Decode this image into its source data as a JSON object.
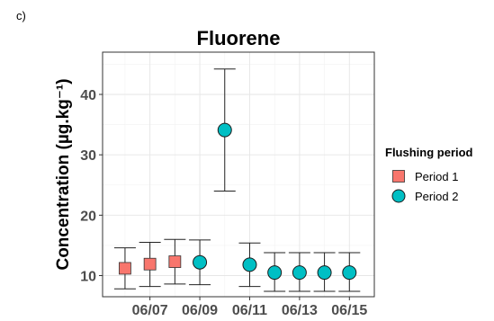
{
  "panel_label": "c)",
  "chart_data": {
    "type": "scatter",
    "title": "Fluorene",
    "ylabel": "Concentration (µg.kg⁻¹)",
    "xlabel": "",
    "ylim": [
      6.5,
      47.0
    ],
    "yticks": [
      10,
      20,
      30,
      40
    ],
    "x_ticklabels": [
      "06/07",
      "06/09",
      "06/11",
      "06/13",
      "06/15"
    ],
    "x_ticklabel_days": [
      7,
      9,
      11,
      13,
      15
    ],
    "xlim_days": [
      5.1,
      16.0
    ],
    "grid": true,
    "legend": {
      "title": "Flushing period",
      "position": "right",
      "entries": [
        {
          "label": "Period 1",
          "marker": "square",
          "color": "#F8766D"
        },
        {
          "label": "Period 2",
          "marker": "circle",
          "color": "#00BFC4"
        }
      ]
    },
    "series": [
      {
        "name": "Period 1",
        "marker": "square",
        "color": "#F8766D",
        "points": [
          {
            "x": "06/06",
            "x_day": 6,
            "y": 11.2,
            "ymin": 7.8,
            "ymax": 14.6
          },
          {
            "x": "06/07",
            "x_day": 7,
            "y": 11.9,
            "ymin": 8.2,
            "ymax": 15.5
          },
          {
            "x": "06/08",
            "x_day": 8,
            "y": 12.3,
            "ymin": 8.6,
            "ymax": 16.0
          }
        ]
      },
      {
        "name": "Period 2",
        "marker": "circle",
        "color": "#00BFC4",
        "points": [
          {
            "x": "06/09",
            "x_day": 9,
            "y": 12.2,
            "ymin": 8.5,
            "ymax": 15.9
          },
          {
            "x": "06/10",
            "x_day": 10,
            "y": 34.1,
            "ymin": 24.0,
            "ymax": 44.2
          },
          {
            "x": "06/11",
            "x_day": 11,
            "y": 11.8,
            "ymin": 8.2,
            "ymax": 15.4
          },
          {
            "x": "06/12",
            "x_day": 12,
            "y": 10.5,
            "ymin": 7.4,
            "ymax": 13.8
          },
          {
            "x": "06/13",
            "x_day": 13,
            "y": 10.5,
            "ymin": 7.4,
            "ymax": 13.8
          },
          {
            "x": "06/14",
            "x_day": 14,
            "y": 10.5,
            "ymin": 7.4,
            "ymax": 13.8
          },
          {
            "x": "06/15",
            "x_day": 15,
            "y": 10.5,
            "ymin": 7.4,
            "ymax": 13.8
          }
        ]
      }
    ]
  }
}
